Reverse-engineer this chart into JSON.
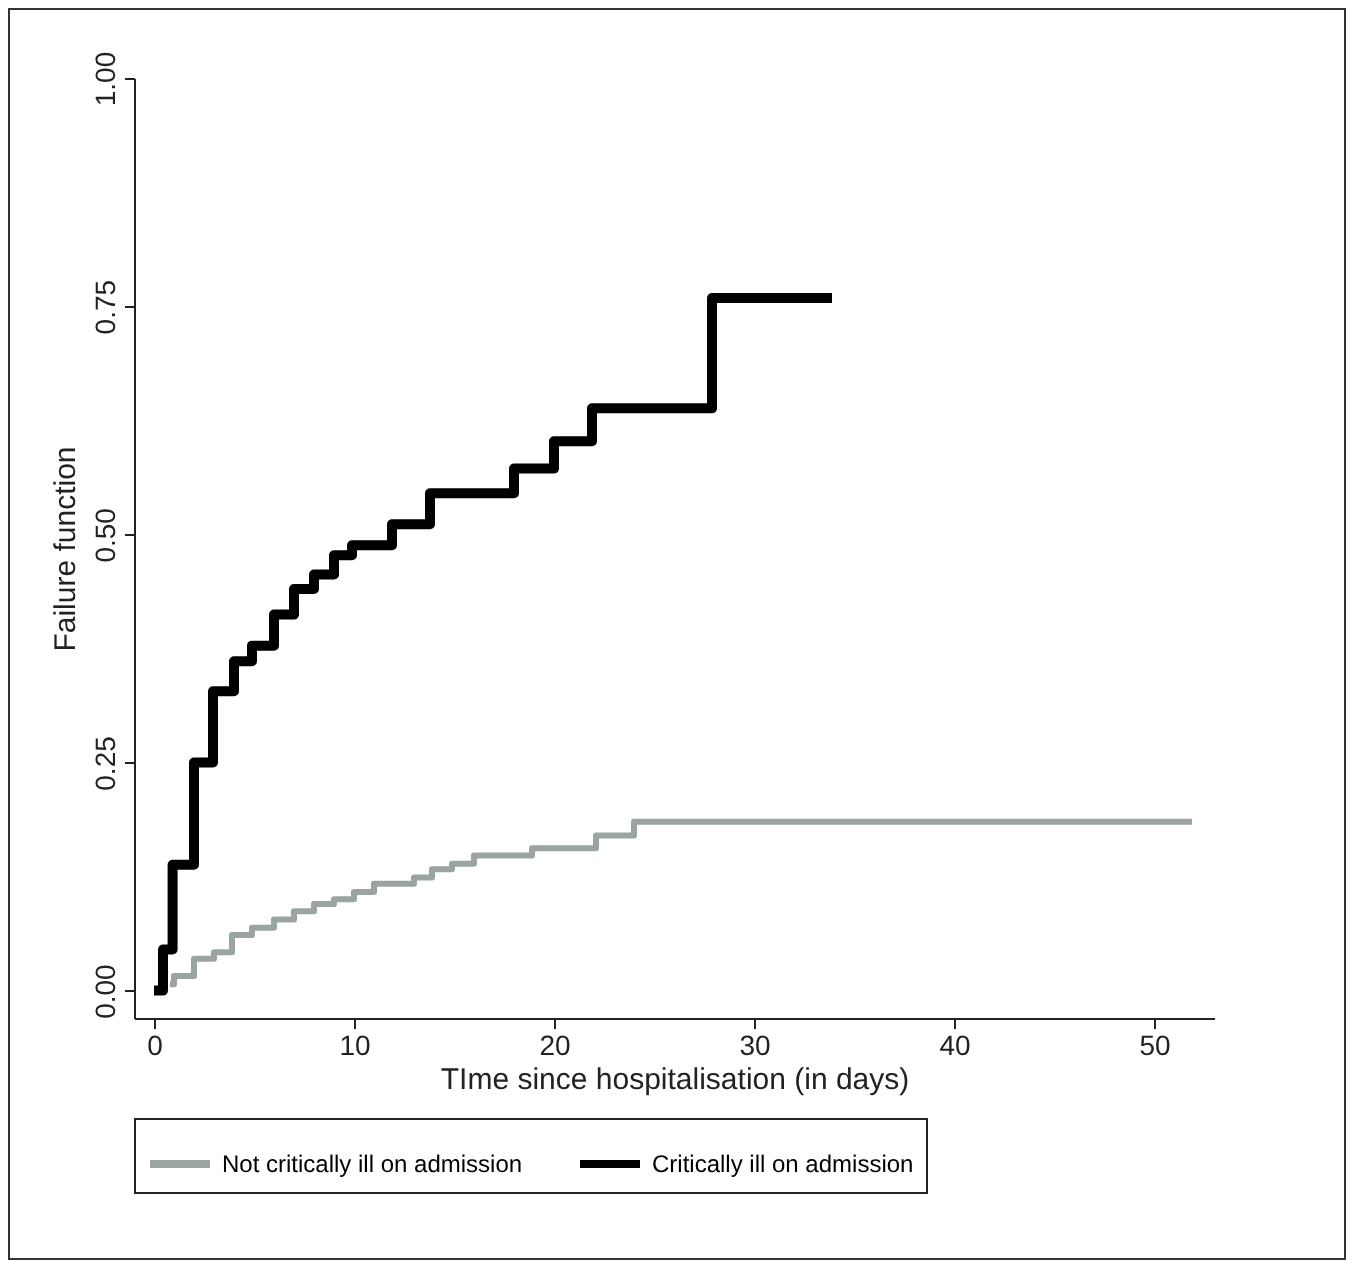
{
  "chart_data": {
    "type": "step",
    "xlabel": "TIme since hospitalisation (in days)",
    "ylabel": "Failure function",
    "xlim": [
      -1,
      53
    ],
    "xticks": [
      0,
      10,
      20,
      30,
      40,
      50
    ],
    "ylim": [
      -0.03,
      1.0
    ],
    "yticks": [
      {
        "value": 0.25,
        "label": "0.25"
      },
      {
        "value": 0.5,
        "label": "0.50"
      },
      {
        "value": 0.75,
        "label": "0.75"
      },
      {
        "value": 1.0,
        "label": "1.00"
      },
      {
        "value": 0,
        "label": "0.00"
      }
    ],
    "grid": false,
    "legend": "bottom",
    "line_style": "solid",
    "series": [
      {
        "name": "Not critically ill on admission",
        "color": "#9aa5a3",
        "x": [
          0.8,
          1.0,
          2.0,
          3.0,
          3.9,
          4.9,
          6.0,
          7.0,
          8.0,
          9.0,
          10.0,
          11.0,
          13.0,
          13.9,
          14.9,
          16.0,
          18.9,
          22.1,
          24.0,
          51.9
        ],
        "values": [
          0.007,
          0.016,
          0.035,
          0.042,
          0.061,
          0.069,
          0.078,
          0.087,
          0.095,
          0.1,
          0.108,
          0.117,
          0.124,
          0.133,
          0.139,
          0.148,
          0.156,
          0.17,
          0.185,
          0.185
        ]
      },
      {
        "name": "Critically ill on admission",
        "color": "#000000",
        "x": [
          0,
          0.45,
          0.93,
          2.0,
          2.95,
          4.0,
          4.9,
          6.0,
          7.0,
          8.0,
          9.0,
          9.9,
          11.9,
          13.8,
          18.0,
          20.0,
          21.9,
          27.9,
          33.9
        ],
        "values": [
          0,
          0.045,
          0.138,
          0.25,
          0.328,
          0.361,
          0.378,
          0.412,
          0.44,
          0.456,
          0.477,
          0.488,
          0.511,
          0.545,
          0.572,
          0.602,
          0.638,
          0.759,
          0.759
        ]
      }
    ]
  }
}
